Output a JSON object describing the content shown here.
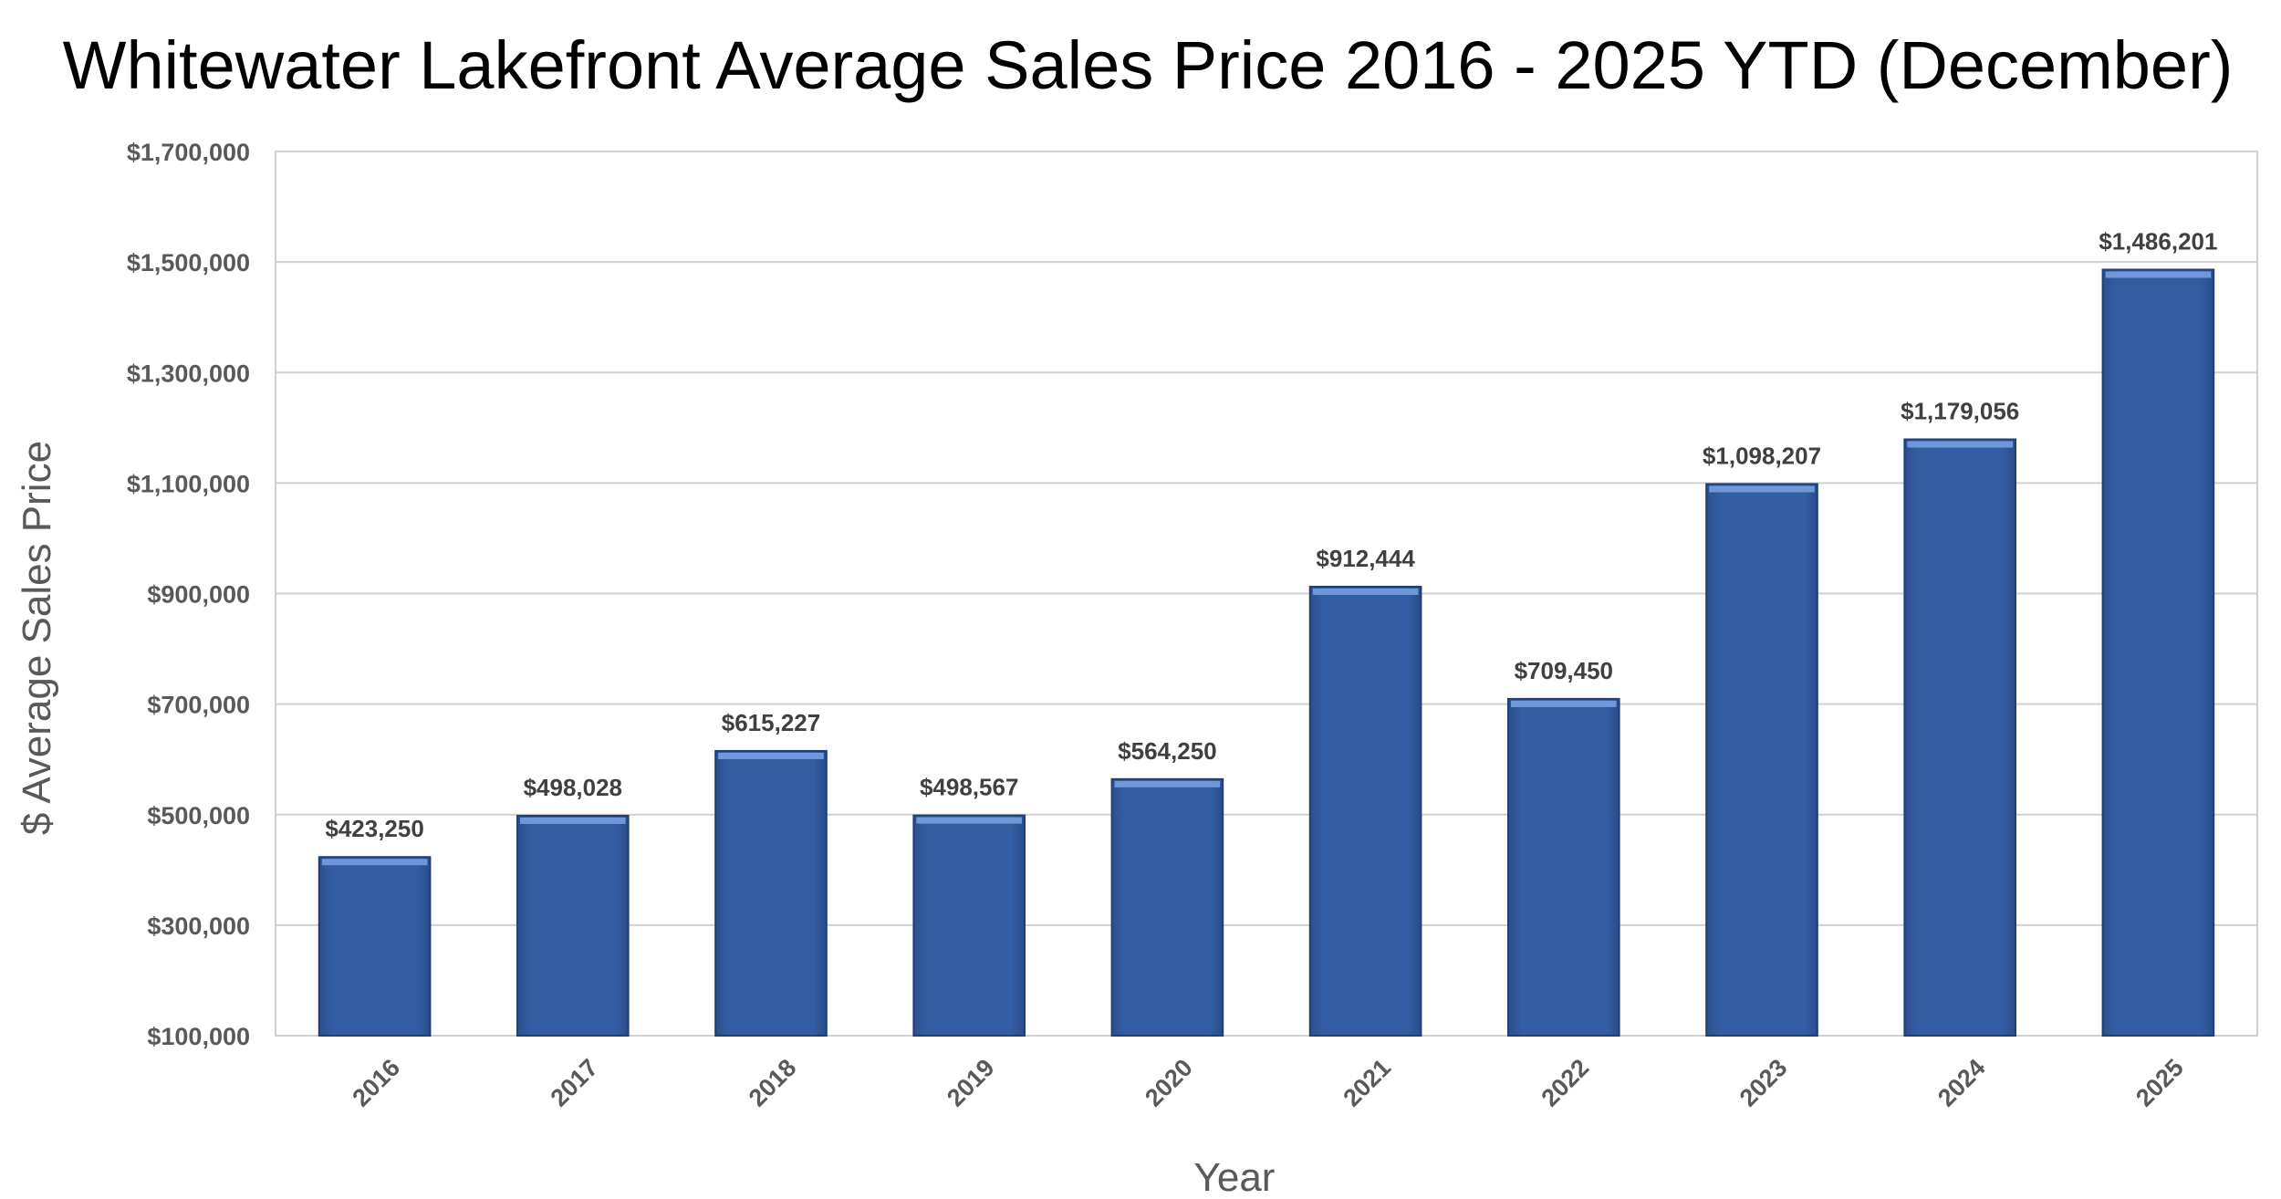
{
  "chart_data": {
    "type": "bar",
    "title": "Whitewater Lakefront Average Sales Price 2016 - 2025 YTD (December)",
    "xlabel": "Year",
    "ylabel": "$ Average Sales Price",
    "categories": [
      "2016",
      "2017",
      "2018",
      "2019",
      "2020",
      "2021",
      "2022",
      "2023",
      "2024",
      "2025"
    ],
    "values": [
      423250,
      498028,
      615227,
      498567,
      564250,
      912444,
      709450,
      1098207,
      1179056,
      1486201
    ],
    "data_labels": [
      "$423,250",
      "$498,028",
      "$615,227",
      "$498,567",
      "$564,250",
      "$912,444",
      "$709,450",
      "$1,098,207",
      "$1,179,056",
      "$1,486,201"
    ],
    "y_ticks": [
      100000,
      300000,
      500000,
      700000,
      900000,
      1100000,
      1300000,
      1500000,
      1700000
    ],
    "y_tick_labels": [
      "$100,000",
      "$300,000",
      "$500,000",
      "$700,000",
      "$900,000",
      "$1,100,000",
      "$1,300,000",
      "$1,500,000",
      "$1,700,000"
    ],
    "ylim": [
      100000,
      1700000
    ],
    "grid": true,
    "legend": "none",
    "bar_color": "#335DA2",
    "bar_edge_color": "#1F3F77",
    "bar_highlight_color": "#6F97DA"
  }
}
